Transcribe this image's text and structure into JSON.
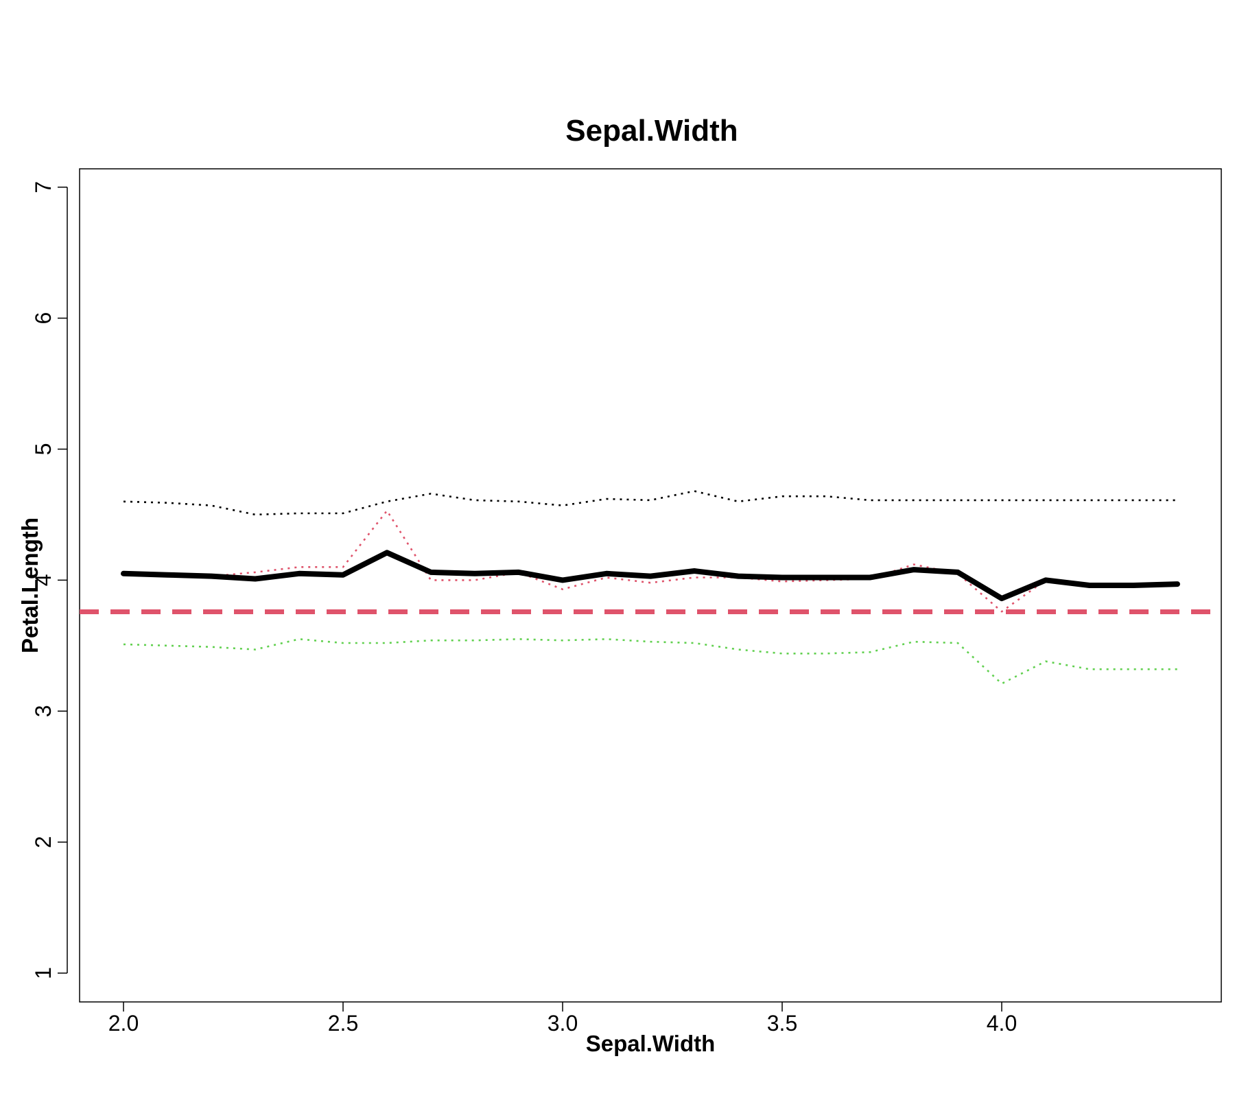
{
  "chart_data": {
    "type": "line",
    "title": "Sepal.Width",
    "xlabel": "Sepal.Width",
    "ylabel": "Petal.Length",
    "xlim": [
      1.9,
      4.5
    ],
    "ylim": [
      0.78,
      7.14
    ],
    "x_ticks": [
      2.0,
      2.5,
      3.0,
      3.5,
      4.0
    ],
    "x_tick_labels": [
      "2.0",
      "2.5",
      "3.0",
      "3.5",
      "4.0"
    ],
    "y_ticks": [
      1,
      2,
      3,
      4,
      5,
      6,
      7
    ],
    "y_tick_labels": [
      "1",
      "2",
      "3",
      "4",
      "5",
      "6",
      "7"
    ],
    "grid": false,
    "x": [
      2.0,
      2.1,
      2.2,
      2.3,
      2.4,
      2.5,
      2.6,
      2.7,
      2.8,
      2.9,
      3.0,
      3.1,
      3.2,
      3.3,
      3.4,
      3.5,
      3.6,
      3.7,
      3.8,
      3.9,
      4.0,
      4.1,
      4.2,
      4.3,
      4.4
    ],
    "series": [
      {
        "style": "solid-thick",
        "color": "#000000",
        "values": [
          4.05,
          4.04,
          4.03,
          4.01,
          4.05,
          4.04,
          4.21,
          4.06,
          4.05,
          4.06,
          4.0,
          4.05,
          4.03,
          4.07,
          4.03,
          4.02,
          4.02,
          4.02,
          4.08,
          4.06,
          3.86,
          4.0,
          3.96,
          3.96,
          3.97
        ]
      },
      {
        "style": "dotted",
        "color": "#DF536B",
        "values": [
          4.05,
          4.04,
          4.03,
          4.06,
          4.1,
          4.1,
          4.53,
          4.0,
          4.0,
          4.06,
          3.93,
          4.02,
          3.98,
          4.02,
          4.02,
          3.99,
          4.0,
          4.01,
          4.12,
          4.05,
          3.76,
          4.0,
          3.96,
          3.96,
          3.97
        ]
      },
      {
        "style": "dotted",
        "color": "#000000",
        "values": [
          4.6,
          4.59,
          4.57,
          4.5,
          4.51,
          4.51,
          4.6,
          4.66,
          4.61,
          4.6,
          4.57,
          4.62,
          4.61,
          4.68,
          4.6,
          4.64,
          4.64,
          4.61,
          4.61,
          4.61,
          4.61,
          4.61,
          4.61,
          4.61,
          4.61
        ]
      },
      {
        "style": "dotted",
        "color": "#61D04F",
        "values": [
          3.51,
          3.5,
          3.49,
          3.47,
          3.55,
          3.52,
          3.52,
          3.54,
          3.54,
          3.55,
          3.54,
          3.55,
          3.53,
          3.52,
          3.47,
          3.44,
          3.44,
          3.45,
          3.53,
          3.52,
          3.21,
          3.38,
          3.32,
          3.32,
          3.32
        ]
      }
    ],
    "reference_line": {
      "y": 3.758,
      "style": "dashed",
      "color": "#DF536B"
    }
  }
}
